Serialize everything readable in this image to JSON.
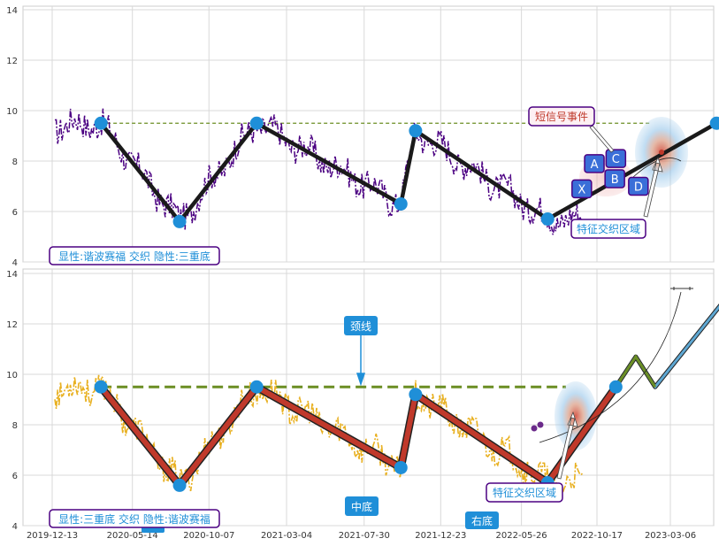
{
  "chart_data": [
    {
      "type": "line",
      "panel": "top",
      "ylim": [
        4,
        14.2
      ],
      "yticks": [
        "4",
        "6",
        "8",
        "10",
        "12",
        "14"
      ],
      "grid": true,
      "colors": {
        "price": "#4b0082",
        "zigzag": "#111111",
        "pivot": "#1f8fd8",
        "neckline": "#6b8e23"
      },
      "neckline": 9.5,
      "pivots": [
        {
          "x": "2020-03-15",
          "y": 9.5
        },
        {
          "x": "2020-08-12",
          "y": 5.6
        },
        {
          "x": "2021-01-06",
          "y": 9.5
        },
        {
          "x": "2021-10-08",
          "y": 6.3
        },
        {
          "x": "2021-11-05",
          "y": 9.2
        },
        {
          "x": "2022-07-15",
          "y": 5.7
        },
        {
          "x": "2023-06-02",
          "y": 9.5
        }
      ],
      "price_end": "2022-09-20",
      "signals": [
        {
          "label": "X",
          "x": "2022-09-18",
          "y": 6.9
        },
        {
          "label": "A",
          "x": "2022-10-12",
          "y": 7.9
        },
        {
          "label": "B",
          "x": "2022-11-20",
          "y": 7.3
        },
        {
          "label": "C",
          "x": "2022-11-22",
          "y": 8.1
        },
        {
          "label": "D",
          "x": "2023-01-04",
          "y": 7.0
        }
      ],
      "annotations": {
        "legend": "显性:谐波赛福 交织 隐性:三重底",
        "short_signal": "短信号事件",
        "zone": "特征交织区域"
      }
    },
    {
      "type": "line",
      "panel": "bottom",
      "ylim": [
        4,
        14.2
      ],
      "yticks": [
        "4",
        "6",
        "8",
        "10",
        "12",
        "14"
      ],
      "grid": true,
      "colors": {
        "price": "#e8b020",
        "zigzag": "#c0392b",
        "pivot": "#1f8fd8",
        "neckline": "#6b8e23",
        "projection": "#5fa8d3"
      },
      "neckline": 9.5,
      "xticks": [
        "2019-12-13",
        "2020-05-14",
        "2020-10-07",
        "2021-03-04",
        "2021-07-30",
        "2021-12-23",
        "2022-05-26",
        "2022-10-17",
        "2023-03-06"
      ],
      "pivots": [
        {
          "x": "2020-03-15",
          "y": 9.5
        },
        {
          "x": "2020-08-12",
          "y": 5.6
        },
        {
          "x": "2021-01-06",
          "y": 9.5
        },
        {
          "x": "2021-10-08",
          "y": 6.3
        },
        {
          "x": "2021-11-05",
          "y": 9.2
        },
        {
          "x": "2022-07-15",
          "y": 5.7
        },
        {
          "x": "2022-11-22",
          "y": 9.5
        }
      ],
      "projection": [
        {
          "x": "2022-11-22",
          "y": 9.5
        },
        {
          "x": "2022-12-30",
          "y": 10.7
        },
        {
          "x": "2023-02-05",
          "y": 9.5
        },
        {
          "x": "2023-07-05",
          "y": 13.4
        }
      ],
      "price_end": "2022-09-20",
      "annotations": {
        "legend": "显性:三重底 交织 隐性:谐波赛福",
        "neckline_label": "颈线",
        "middle_bottom": "中底",
        "right_bottom": "右底",
        "zone": "特征交织区域"
      }
    }
  ]
}
